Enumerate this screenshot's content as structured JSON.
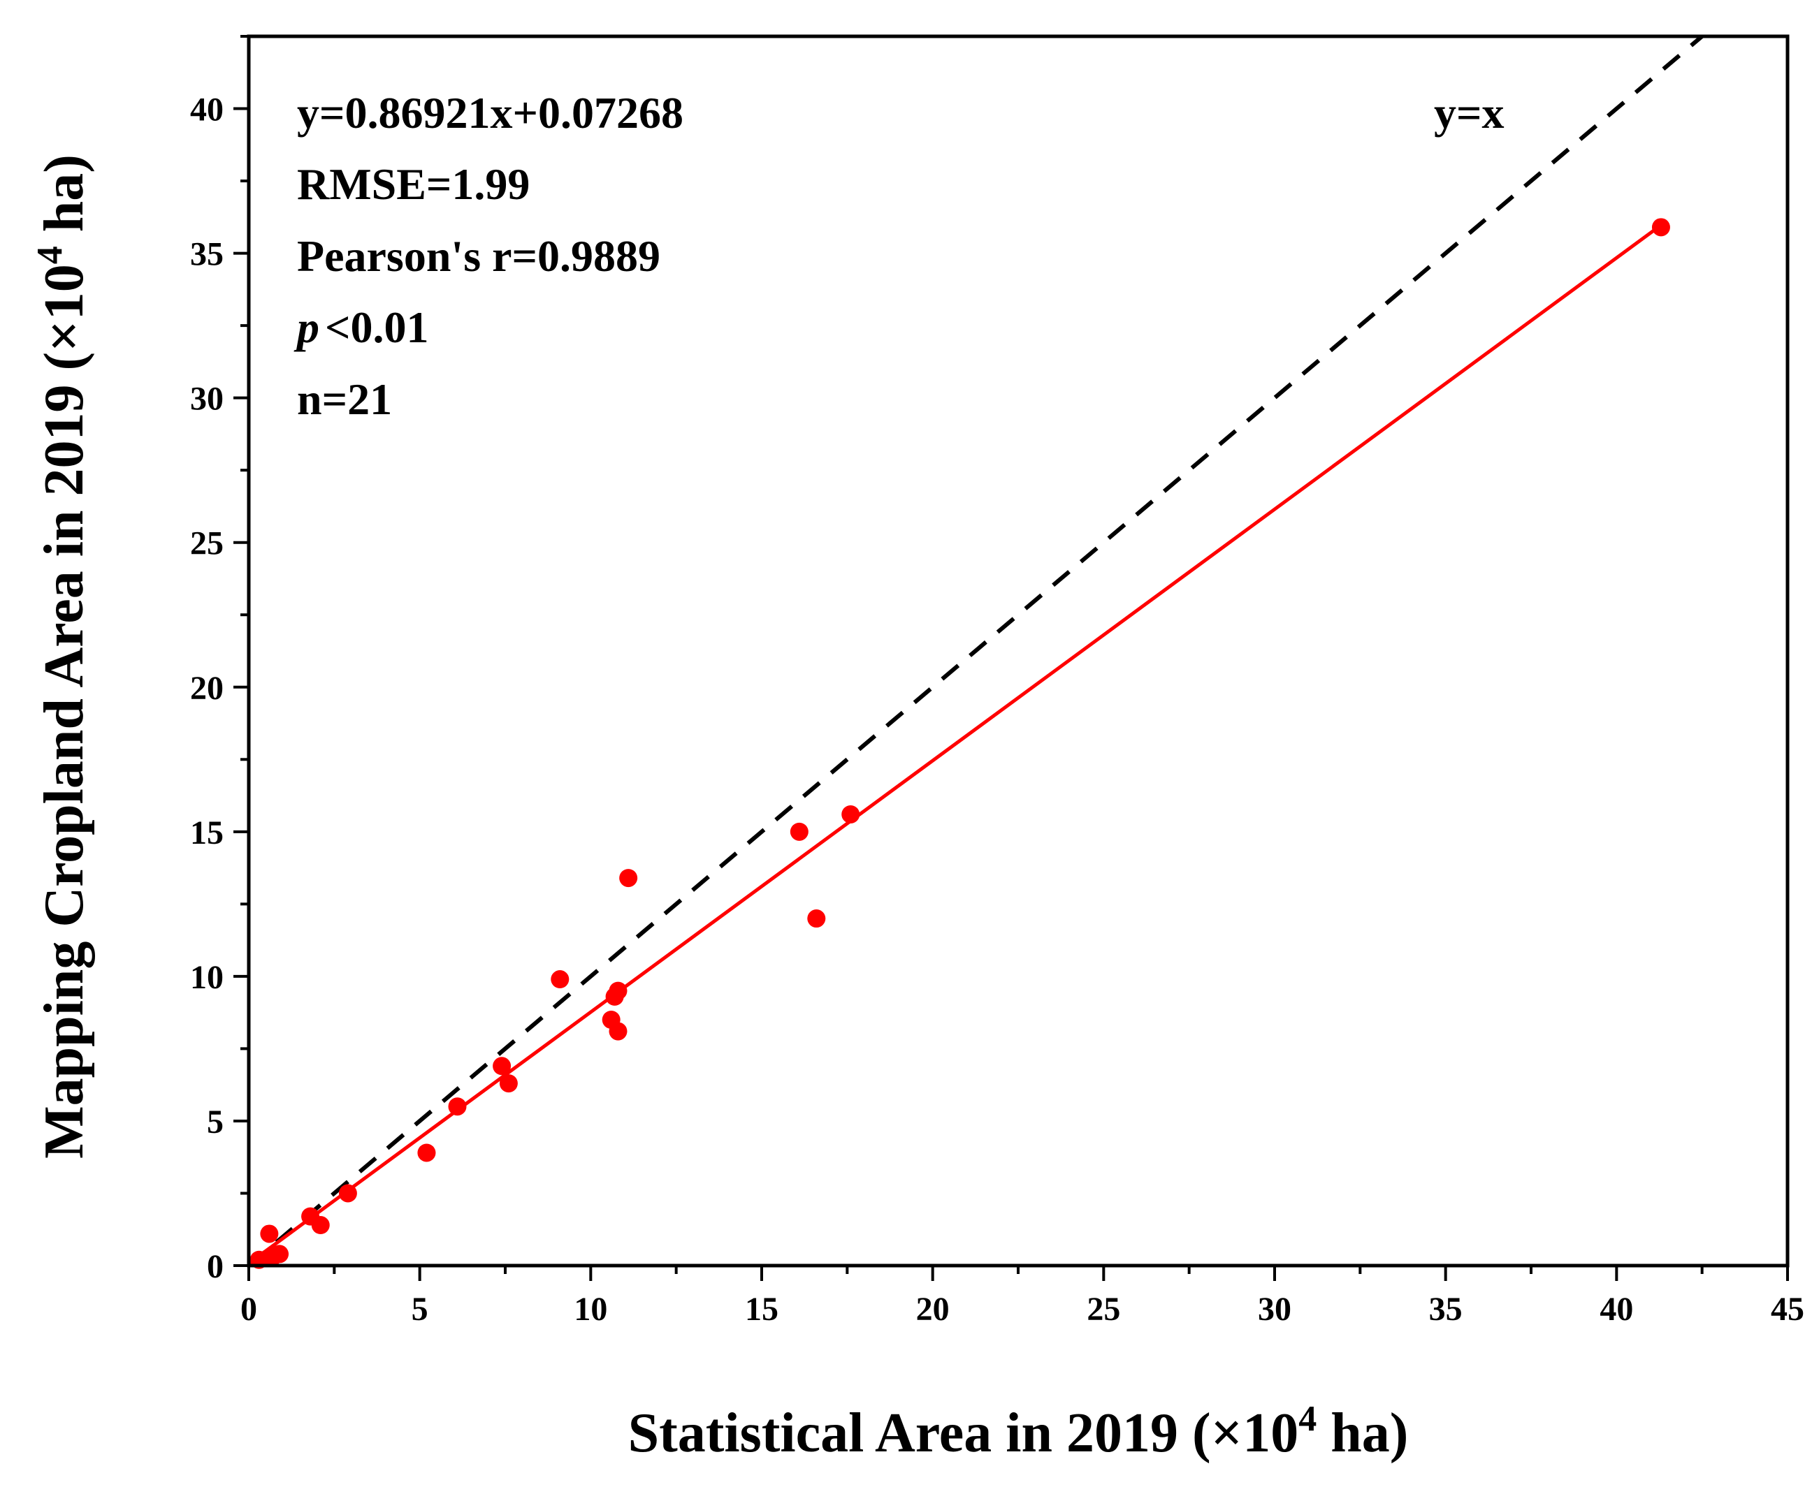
{
  "chart_data": {
    "type": "scatter",
    "xlabel": {
      "prefix": "Statistical Area in 2019 (×10",
      "sup": "4",
      "suffix": " ha)"
    },
    "ylabel": {
      "prefix": "Mapping Cropland Area in 2019 (×10",
      "sup": "4",
      "suffix": " ha)"
    },
    "xlim": [
      0,
      45
    ],
    "ylim": [
      0,
      42.5
    ],
    "xticks": [
      0,
      5,
      10,
      15,
      20,
      25,
      30,
      35,
      40,
      45
    ],
    "yticks": [
      0,
      5,
      10,
      15,
      20,
      25,
      30,
      35,
      40
    ],
    "grid": false,
    "colors": {
      "points": "#ff0000",
      "fit_line": "#ff0000",
      "identity_line": "#000000",
      "axes": "#000000"
    },
    "points": {
      "x": [
        0.6,
        0.9,
        0.7,
        1.8,
        2.1,
        2.9,
        5.2,
        6.1,
        7.4,
        7.6,
        9.1,
        10.6,
        10.7,
        10.8,
        10.8,
        11.1,
        16.1,
        16.6,
        17.6,
        41.3,
        0.3
      ],
      "y": [
        1.1,
        0.4,
        0.3,
        1.7,
        1.4,
        2.5,
        3.9,
        5.5,
        6.9,
        6.3,
        9.9,
        8.5,
        9.3,
        9.5,
        8.1,
        13.4,
        15.0,
        12.0,
        15.6,
        35.9,
        0.2
      ]
    },
    "fit": {
      "slope": 0.86921,
      "intercept": 0.07268,
      "x_range": [
        0,
        41.3
      ]
    },
    "identity": {
      "label": "y=x",
      "x_range": [
        0,
        42.6
      ]
    },
    "annotations": {
      "equation": "y=0.86921x+0.07268",
      "rmse": "RMSE=1.99",
      "pearson": "Pearson's r=0.9889",
      "p_symbol": "p",
      "p_rest": "<0.01",
      "n": "n=21"
    }
  }
}
